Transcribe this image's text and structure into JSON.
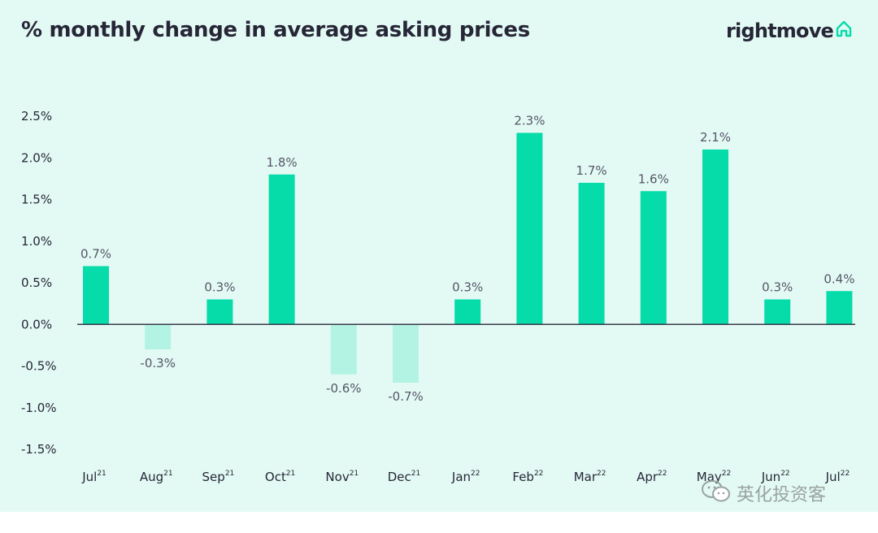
{
  "header": {
    "title": "% monthly change in average asking prices"
  },
  "brand": {
    "name": "rightmove",
    "icon": "house-icon"
  },
  "watermark": {
    "text": "英化投资客",
    "icon": "wechat-icon"
  },
  "colors": {
    "background": "#e3faf4",
    "positive_bar": "#06dbaa",
    "negative_bar": "#b3f3e3",
    "text": "#262637"
  },
  "chart_data": {
    "type": "bar",
    "title": "% monthly change in average asking prices",
    "xlabel": "",
    "ylabel": "",
    "categories": [
      {
        "month": "Jul",
        "year": "21"
      },
      {
        "month": "Aug",
        "year": "21"
      },
      {
        "month": "Sep",
        "year": "21"
      },
      {
        "month": "Oct",
        "year": "21"
      },
      {
        "month": "Nov",
        "year": "21"
      },
      {
        "month": "Dec",
        "year": "21"
      },
      {
        "month": "Jan",
        "year": "22"
      },
      {
        "month": "Feb",
        "year": "22"
      },
      {
        "month": "Mar",
        "year": "22"
      },
      {
        "month": "Apr",
        "year": "22"
      },
      {
        "month": "May",
        "year": "22"
      },
      {
        "month": "Jun",
        "year": "22"
      },
      {
        "month": "Jul",
        "year": "22"
      }
    ],
    "values": [
      0.7,
      -0.3,
      0.3,
      1.8,
      -0.6,
      -0.7,
      0.3,
      2.3,
      1.7,
      1.6,
      2.1,
      0.3,
      0.4
    ],
    "data_labels": [
      "0.7%",
      "-0.3%",
      "0.3%",
      "1.8%",
      "-0.6%",
      "-0.7%",
      "0.3%",
      "2.3%",
      "1.7%",
      "1.6%",
      "2.1%",
      "0.3%",
      "0.4%"
    ],
    "y_ticks": [
      2.5,
      2.0,
      1.5,
      1.0,
      0.5,
      0.0,
      -0.5,
      -1.0,
      -1.5
    ],
    "y_tick_labels": [
      "2.5%",
      "2.0%",
      "1.5%",
      "1.0%",
      "0.5%",
      "0.0%",
      "-0.5%",
      "-1.0%",
      "-1.5%"
    ],
    "ylim": [
      -1.5,
      2.5
    ],
    "grid": false
  }
}
